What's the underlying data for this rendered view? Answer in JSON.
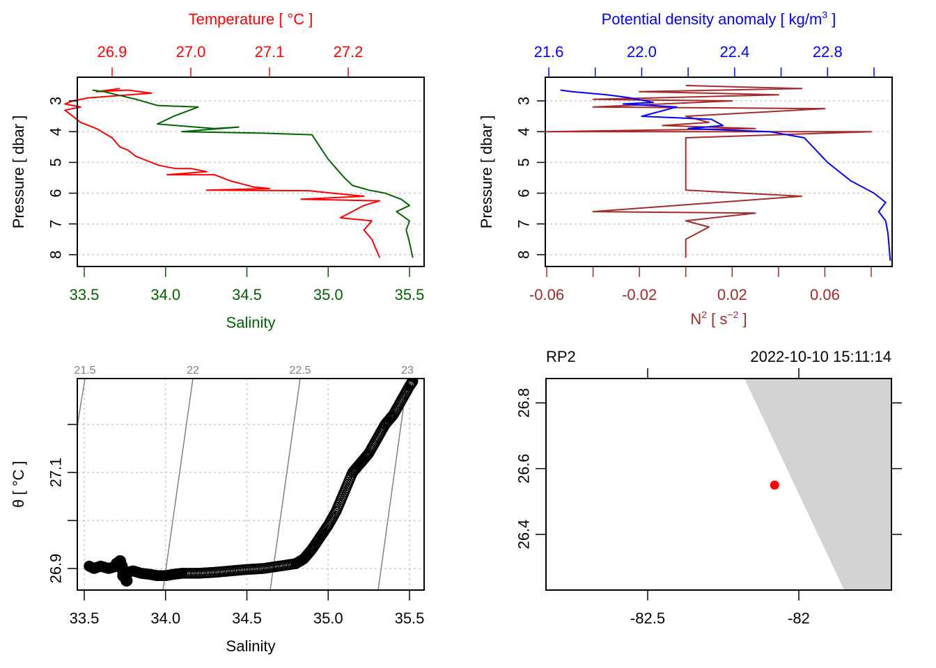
{
  "chart_data": [
    {
      "id": "profile-ts",
      "type": "line",
      "top_axis": {
        "label": "Temperature [ °C ]",
        "ticks": [
          "26.9",
          "27.0",
          "27.1",
          "27.2"
        ],
        "tick_values": [
          26.9,
          27.0,
          27.1,
          27.2
        ],
        "color": "#ff0000"
      },
      "bottom_axis": {
        "label": "Salinity",
        "ticks": [
          "33.5",
          "34.0",
          "34.5",
          "35.0",
          "35.5"
        ],
        "tick_values": [
          33.5,
          34.0,
          34.5,
          35.0,
          35.5
        ],
        "color": "#006400"
      },
      "y_axis": {
        "label": "Pressure [ dbar ]",
        "ticks": [
          "3",
          "4",
          "5",
          "6",
          "7",
          "8"
        ],
        "tick_values": [
          3,
          4,
          5,
          6,
          7,
          8
        ],
        "reversed": true,
        "ylim": [
          8.4,
          2.25
        ]
      },
      "xlim_salinity": [
        33.45,
        35.63
      ],
      "xlim_temperature": [
        26.82,
        27.26
      ],
      "grid": "horizontal-dotted",
      "series": [
        {
          "name": "Temperature",
          "axis": "top",
          "color": "#ff0000",
          "points": [
            [
              26.91,
              2.6
            ],
            [
              26.88,
              2.7
            ],
            [
              26.92,
              2.65
            ],
            [
              26.95,
              2.75
            ],
            [
              26.87,
              2.9
            ],
            [
              26.85,
              3.0
            ],
            [
              26.84,
              3.1
            ],
            [
              26.86,
              3.2
            ],
            [
              26.84,
              3.3
            ],
            [
              26.85,
              3.5
            ],
            [
              26.86,
              3.7
            ],
            [
              26.88,
              3.9
            ],
            [
              26.9,
              4.2
            ],
            [
              26.91,
              4.5
            ],
            [
              26.92,
              4.6
            ],
            [
              26.93,
              4.8
            ],
            [
              26.94,
              4.9
            ],
            [
              26.96,
              5.1
            ],
            [
              26.98,
              5.2
            ],
            [
              27.0,
              5.2
            ],
            [
              27.02,
              5.3
            ],
            [
              26.97,
              5.4
            ],
            [
              27.03,
              5.4
            ],
            [
              27.05,
              5.6
            ],
            [
              27.08,
              5.8
            ],
            [
              27.1,
              5.85
            ],
            [
              27.02,
              5.9
            ],
            [
              27.15,
              5.92
            ],
            [
              27.18,
              6.0
            ],
            [
              27.22,
              6.1
            ],
            [
              27.14,
              6.2
            ],
            [
              27.24,
              6.25
            ],
            [
              27.22,
              6.4
            ],
            [
              27.19,
              6.8
            ],
            [
              27.23,
              6.9
            ],
            [
              27.22,
              7.2
            ],
            [
              27.23,
              7.5
            ],
            [
              27.24,
              8.1
            ]
          ]
        },
        {
          "name": "Salinity",
          "axis": "bottom",
          "color": "#006400",
          "points": [
            [
              33.55,
              2.65
            ],
            [
              33.62,
              2.7
            ],
            [
              33.7,
              2.8
            ],
            [
              33.82,
              2.95
            ],
            [
              33.95,
              3.15
            ],
            [
              34.2,
              3.2
            ],
            [
              34.05,
              3.5
            ],
            [
              33.95,
              3.75
            ],
            [
              34.3,
              3.9
            ],
            [
              34.45,
              3.85
            ],
            [
              34.1,
              4.0
            ],
            [
              34.6,
              4.05
            ],
            [
              34.9,
              4.1
            ],
            [
              34.95,
              4.5
            ],
            [
              35.0,
              4.9
            ],
            [
              35.05,
              5.2
            ],
            [
              35.1,
              5.5
            ],
            [
              35.15,
              5.75
            ],
            [
              35.25,
              5.9
            ],
            [
              35.35,
              6.0
            ],
            [
              35.45,
              6.2
            ],
            [
              35.5,
              6.4
            ],
            [
              35.42,
              6.6
            ],
            [
              35.5,
              6.9
            ],
            [
              35.48,
              7.2
            ],
            [
              35.5,
              7.6
            ],
            [
              35.52,
              8.1
            ]
          ]
        }
      ]
    },
    {
      "id": "profile-density-n2",
      "type": "line",
      "top_axis": {
        "label": "Potential density anomaly [ kg/m³ ]",
        "ticks": [
          "21.6",
          "22.0",
          "22.4",
          "22.8"
        ],
        "tick_values": [
          21.6,
          22.0,
          22.4,
          22.8
        ],
        "minor_tick_values": [
          21.8,
          22.2,
          22.6,
          23.0
        ],
        "color": "#0000ff"
      },
      "bottom_axis": {
        "label": "N² [ s⁻² ]",
        "ticks": [
          "-0.06",
          "-0.02",
          "0.02",
          "0.06"
        ],
        "tick_values": [
          -0.06,
          -0.02,
          0.02,
          0.06
        ],
        "minor_tick_values": [
          -0.04,
          0.0,
          0.04,
          0.08
        ],
        "color": "#a52a2a"
      },
      "y_axis": {
        "label": "Pressure [ dbar ]",
        "ticks": [
          "3",
          "4",
          "5",
          "6",
          "7",
          "8"
        ],
        "tick_values": [
          3,
          4,
          5,
          6,
          7,
          8
        ],
        "reversed": true
      },
      "grid": "horizontal-dotted",
      "series": [
        {
          "name": "Potential density anomaly",
          "axis": "top",
          "color": "#0000ff",
          "points": [
            [
              21.65,
              2.65
            ],
            [
              21.7,
              2.7
            ],
            [
              21.85,
              2.8
            ],
            [
              21.95,
              2.9
            ],
            [
              22.05,
              3.05
            ],
            [
              21.92,
              3.1
            ],
            [
              22.15,
              3.2
            ],
            [
              22.0,
              3.5
            ],
            [
              22.3,
              3.6
            ],
            [
              22.35,
              3.8
            ],
            [
              22.2,
              3.9
            ],
            [
              22.55,
              4.0
            ],
            [
              22.7,
              4.2
            ],
            [
              22.75,
              4.6
            ],
            [
              22.8,
              5.0
            ],
            [
              22.85,
              5.3
            ],
            [
              22.9,
              5.6
            ],
            [
              22.95,
              5.8
            ],
            [
              23.0,
              6.0
            ],
            [
              23.05,
              6.3
            ],
            [
              23.02,
              6.6
            ],
            [
              23.05,
              6.9
            ],
            [
              23.06,
              7.3
            ],
            [
              23.07,
              8.2
            ]
          ]
        },
        {
          "name": "N²",
          "axis": "bottom",
          "color": "#a52a2a",
          "points": [
            [
              0.0,
              2.5
            ],
            [
              0.05,
              2.6
            ],
            [
              -0.02,
              2.7
            ],
            [
              0.04,
              2.8
            ],
            [
              -0.04,
              2.95
            ],
            [
              0.02,
              3.0
            ],
            [
              -0.04,
              3.2
            ],
            [
              0.06,
              3.25
            ],
            [
              0.0,
              3.5
            ],
            [
              0.01,
              3.7
            ],
            [
              -0.01,
              3.8
            ],
            [
              0.03,
              3.9
            ],
            [
              -0.06,
              4.0
            ],
            [
              0.08,
              4.0
            ],
            [
              0.0,
              4.2
            ],
            [
              0.0,
              4.6
            ],
            [
              0.0,
              5.0
            ],
            [
              0.0,
              5.5
            ],
            [
              0.0,
              5.9
            ],
            [
              0.05,
              6.1
            ],
            [
              -0.04,
              6.6
            ],
            [
              0.03,
              6.65
            ],
            [
              0.0,
              6.9
            ],
            [
              0.01,
              7.1
            ],
            [
              0.0,
              7.5
            ],
            [
              0.0,
              8.1
            ]
          ]
        }
      ]
    },
    {
      "id": "ts-diagram",
      "type": "scatter",
      "xlabel": "Salinity",
      "ylabel": "θ [ °C ]",
      "x_ticks": [
        "33.5",
        "34.0",
        "34.5",
        "35.0",
        "35.5"
      ],
      "x_tick_values": [
        33.5,
        34.0,
        34.5,
        35.0,
        35.5
      ],
      "y_ticks": [
        "26.9",
        "27.1"
      ],
      "y_tick_values": [
        26.9,
        27.1
      ],
      "y_minor_tick_values": [
        27.0,
        27.2
      ],
      "xlim": [
        33.45,
        35.63
      ],
      "ylim": [
        26.855,
        27.295
      ],
      "grid": true,
      "isopycnals": [
        {
          "label": "21.5",
          "value": 21.5
        },
        {
          "label": "22",
          "value": 22.0
        },
        {
          "label": "22.5",
          "value": 22.5
        },
        {
          "label": "23",
          "value": 23.0
        }
      ],
      "points": [
        [
          33.53,
          26.905
        ],
        [
          33.56,
          26.9
        ],
        [
          33.6,
          26.905
        ],
        [
          33.65,
          26.9
        ],
        [
          33.7,
          26.905
        ],
        [
          33.72,
          26.91
        ],
        [
          33.74,
          26.89
        ],
        [
          33.8,
          26.895
        ],
        [
          33.85,
          26.89
        ],
        [
          33.9,
          26.888
        ],
        [
          33.95,
          26.885
        ],
        [
          34.0,
          26.885
        ],
        [
          34.05,
          26.888
        ],
        [
          34.1,
          26.89
        ],
        [
          34.2,
          26.89
        ],
        [
          34.3,
          26.892
        ],
        [
          34.4,
          26.895
        ],
        [
          34.5,
          26.898
        ],
        [
          34.6,
          26.9
        ],
        [
          34.7,
          26.905
        ],
        [
          34.8,
          26.91
        ],
        [
          34.85,
          26.92
        ],
        [
          34.9,
          26.94
        ],
        [
          34.95,
          26.965
        ],
        [
          35.0,
          26.99
        ],
        [
          35.05,
          27.02
        ],
        [
          35.1,
          27.06
        ],
        [
          35.15,
          27.1
        ],
        [
          35.2,
          27.12
        ],
        [
          35.25,
          27.14
        ],
        [
          35.3,
          27.17
        ],
        [
          35.35,
          27.2
        ],
        [
          35.4,
          27.22
        ],
        [
          35.45,
          27.25
        ],
        [
          35.5,
          27.28
        ],
        [
          35.52,
          27.29
        ]
      ]
    },
    {
      "id": "station-map",
      "type": "scatter",
      "title_left": "RP2",
      "title_right": "2022-10-10 15:11:14",
      "x_ticks": [
        "-82.5",
        "-82"
      ],
      "x_tick_values": [
        -82.5,
        -82.0
      ],
      "y_ticks": [
        "26.4",
        "26.6",
        "26.8"
      ],
      "y_tick_values": [
        26.4,
        26.6,
        26.8
      ],
      "xlim": [
        -82.83,
        -81.69
      ],
      "ylim": [
        26.225,
        26.875
      ],
      "land_color": "#d3d3d3",
      "land_polygon": [
        [
          -82.18,
          26.875
        ],
        [
          -81.69,
          26.875
        ],
        [
          -81.69,
          26.225
        ],
        [
          -81.85,
          26.225
        ]
      ],
      "station": {
        "lon": -82.08,
        "lat": 26.55,
        "color": "#ff0000"
      }
    }
  ]
}
